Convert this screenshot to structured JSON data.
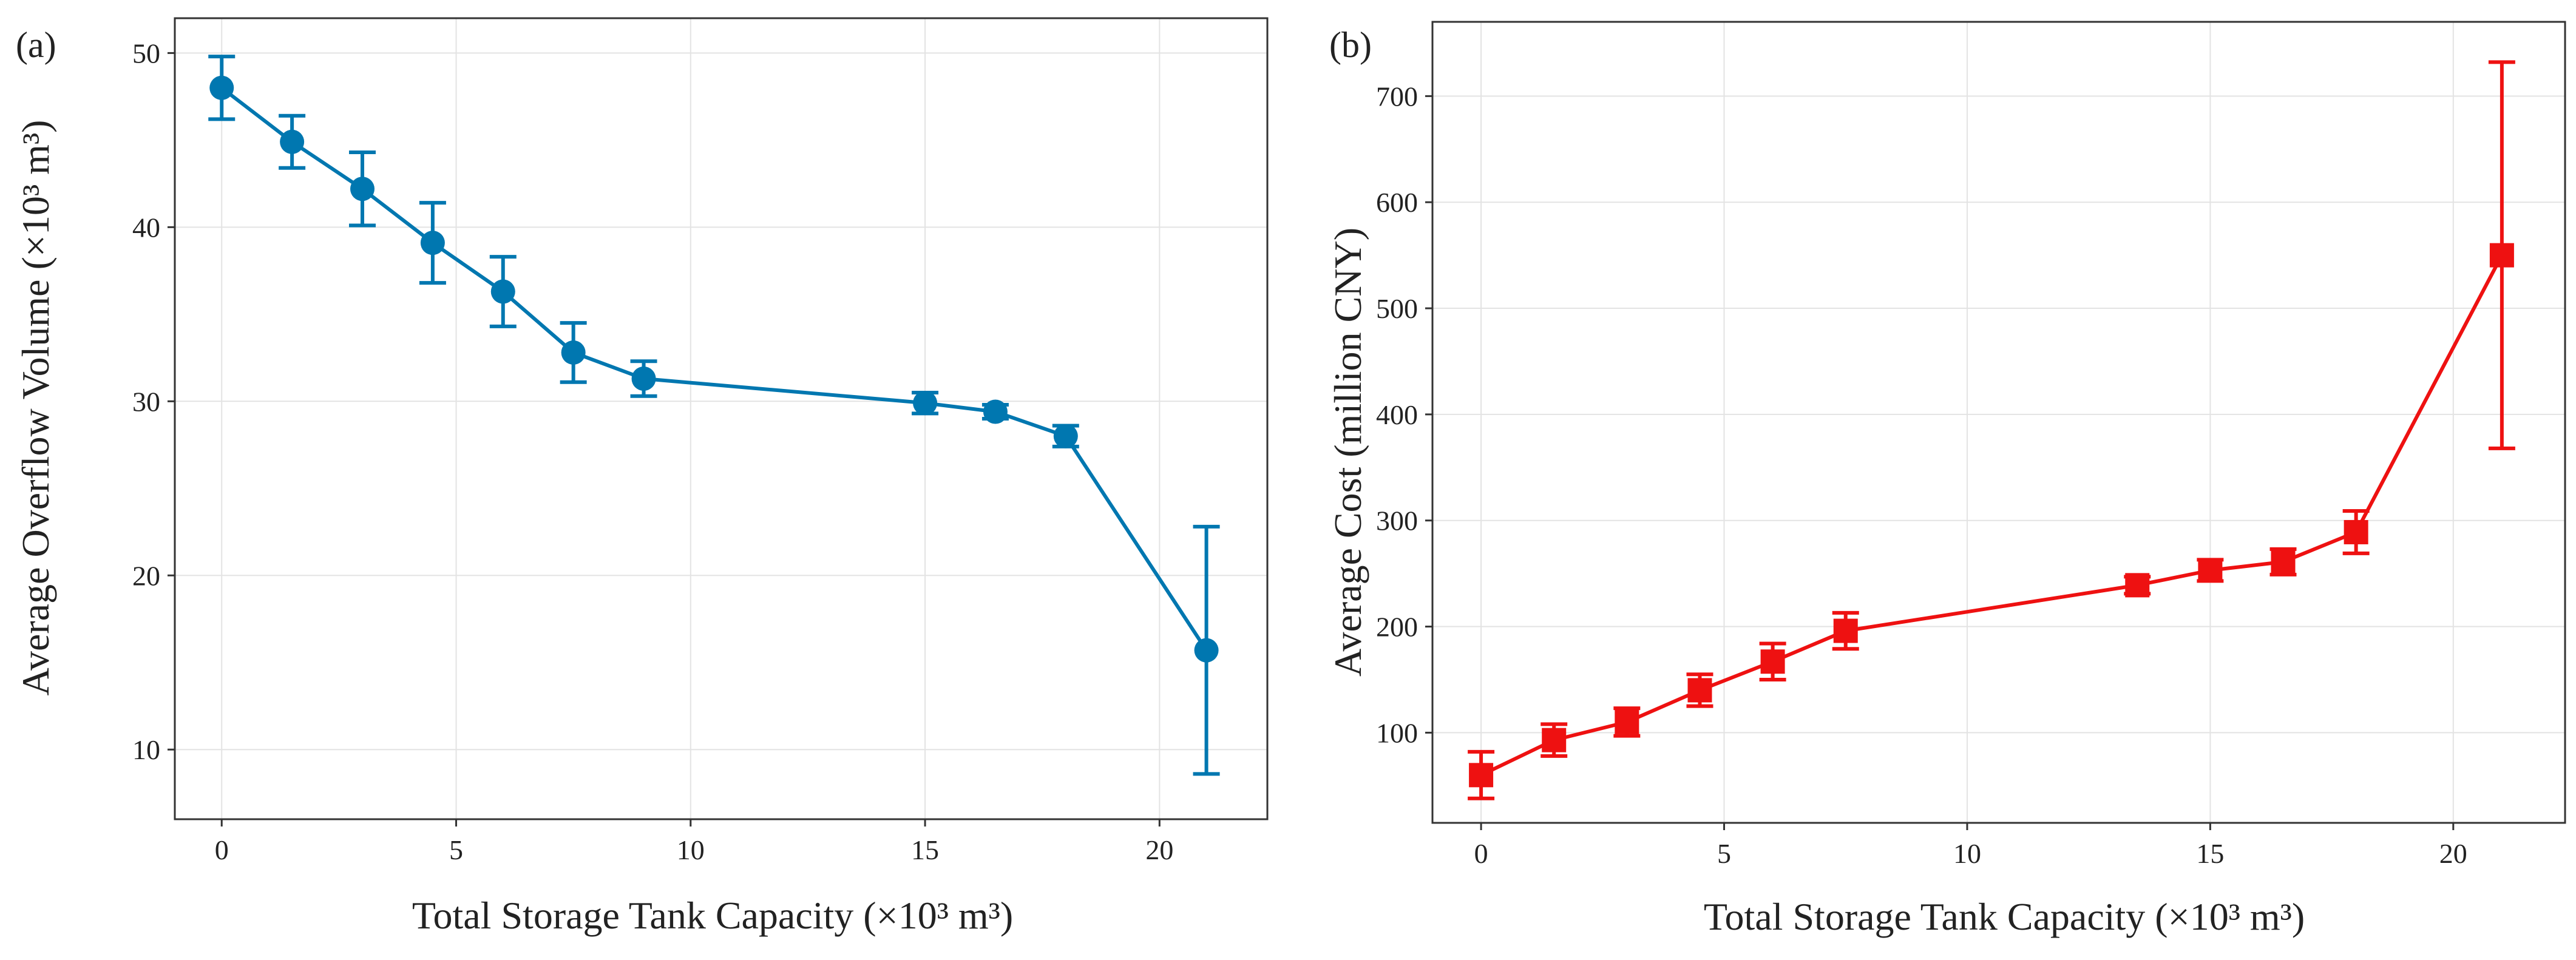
{
  "chart_data": [
    {
      "type": "line",
      "panel_label": "(a)",
      "xlabel": "Total Storage Tank Capacity (×10³ m³)",
      "ylabel": "Average Overflow Volume (×10³ m³)",
      "xlim": [
        -1,
        22.3
      ],
      "ylim": [
        6,
        52
      ],
      "xticks": [
        0,
        5,
        10,
        15,
        20
      ],
      "yticks": [
        10,
        20,
        30,
        40,
        50
      ],
      "grid": true,
      "marker": "circle",
      "color": "#0077b0",
      "series": [
        {
          "x": [
            0,
            1.5,
            3,
            4.5,
            6,
            7.5,
            9,
            15,
            16.5,
            18,
            21
          ],
          "y": [
            48.0,
            44.9,
            42.2,
            39.1,
            36.3,
            32.8,
            31.3,
            29.9,
            29.4,
            28.0,
            15.7
          ],
          "error": [
            1.8,
            1.5,
            2.1,
            2.3,
            2.0,
            1.7,
            1.0,
            0.6,
            0.4,
            0.6,
            7.1
          ]
        }
      ]
    },
    {
      "type": "line",
      "panel_label": "(b)",
      "xlabel": "Total Storage Tank Capacity (×10³ m³)",
      "ylabel": "Average Cost (million CNY)",
      "xlim": [
        -1,
        22.3
      ],
      "ylim": [
        15,
        770
      ],
      "xticks": [
        0,
        5,
        10,
        15,
        20
      ],
      "yticks": [
        100,
        200,
        300,
        400,
        500,
        600,
        700
      ],
      "grid": true,
      "marker": "square",
      "color": "#ee1111",
      "series": [
        {
          "x": [
            0,
            1.5,
            3,
            4.5,
            6,
            7.5,
            13.5,
            15,
            16.5,
            18,
            21
          ],
          "y": [
            60,
            93,
            110,
            140,
            167,
            196,
            239,
            253,
            261,
            289,
            550
          ],
          "error": [
            22,
            15,
            13,
            15,
            17,
            17,
            8,
            10,
            12,
            20,
            182
          ]
        }
      ]
    }
  ]
}
